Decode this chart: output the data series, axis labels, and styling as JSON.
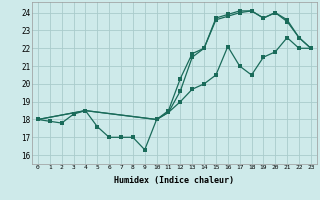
{
  "xlabel": "Humidex (Indice chaleur)",
  "background_color": "#ceeaea",
  "grid_color": "#aacccc",
  "line_color": "#1a6b5a",
  "xlim": [
    -0.5,
    23.5
  ],
  "ylim": [
    15.5,
    24.6
  ],
  "yticks": [
    16,
    17,
    18,
    19,
    20,
    21,
    22,
    23,
    24
  ],
  "xticks": [
    0,
    1,
    2,
    3,
    4,
    5,
    6,
    7,
    8,
    9,
    10,
    11,
    12,
    13,
    14,
    15,
    16,
    17,
    18,
    19,
    20,
    21,
    22,
    23
  ],
  "line1_x": [
    0,
    1,
    2,
    3,
    4,
    5,
    6,
    7,
    8,
    9,
    10,
    11,
    12,
    13,
    14,
    15,
    16,
    17,
    18,
    19,
    20,
    21,
    22,
    23
  ],
  "line1_y": [
    18.0,
    17.9,
    17.8,
    18.3,
    18.5,
    17.6,
    17.0,
    17.0,
    17.0,
    16.3,
    18.0,
    18.4,
    19.0,
    19.7,
    20.0,
    20.5,
    22.1,
    21.0,
    20.5,
    21.5,
    21.8,
    22.6,
    22.0,
    22.0
  ],
  "line2_x": [
    0,
    4,
    10,
    11,
    12,
    13,
    14,
    15,
    16,
    17,
    18,
    19,
    20,
    21,
    22,
    23
  ],
  "line2_y": [
    18.0,
    18.5,
    18.0,
    18.5,
    20.3,
    21.7,
    22.0,
    23.7,
    23.9,
    24.1,
    24.1,
    23.7,
    24.0,
    23.5,
    22.6,
    22.0
  ],
  "line3_x": [
    0,
    4,
    10,
    11,
    12,
    13,
    14,
    15,
    16,
    17,
    18,
    19,
    20,
    21,
    22,
    23
  ],
  "line3_y": [
    18.0,
    18.5,
    18.0,
    18.4,
    19.6,
    21.5,
    22.0,
    23.6,
    23.8,
    24.0,
    24.1,
    23.7,
    24.0,
    23.6,
    22.6,
    22.0
  ]
}
